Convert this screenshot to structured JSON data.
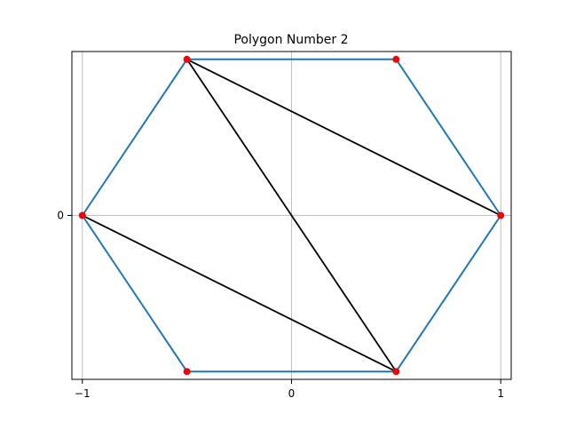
{
  "chart_data": {
    "type": "line",
    "title": "Polygon Number 2",
    "xlabel": "",
    "ylabel": "",
    "xlim": [
      -1.05,
      1.05
    ],
    "ylim": [
      -0.9093,
      0.9093
    ],
    "grid": true,
    "x_ticks": [
      {
        "value": -1,
        "label": "−1"
      },
      {
        "value": 0,
        "label": "0"
      },
      {
        "value": 1,
        "label": "1"
      }
    ],
    "y_ticks": [
      {
        "value": 0,
        "label": "0"
      }
    ],
    "polygon": {
      "color": "#1f77b4",
      "x": [
        1.0,
        0.5,
        -0.5,
        -1.0,
        -0.5,
        0.5,
        1.0
      ],
      "y": [
        0.0,
        0.866,
        0.866,
        0.0,
        -0.866,
        -0.866,
        0.0
      ]
    },
    "diagonals": {
      "color": "#000000",
      "segments": [
        {
          "x": [
            -0.5,
            1.0
          ],
          "y": [
            0.866,
            0.0
          ]
        },
        {
          "x": [
            -0.5,
            0.5
          ],
          "y": [
            0.866,
            -0.866
          ]
        },
        {
          "x": [
            -1.0,
            0.5
          ],
          "y": [
            0.0,
            -0.866
          ]
        }
      ]
    },
    "vertices": {
      "color": "#ff0000",
      "x": [
        1.0,
        0.5,
        -0.5,
        -1.0,
        -0.5,
        0.5
      ],
      "y": [
        0.0,
        0.866,
        0.866,
        0.0,
        -0.866,
        -0.866
      ]
    }
  }
}
